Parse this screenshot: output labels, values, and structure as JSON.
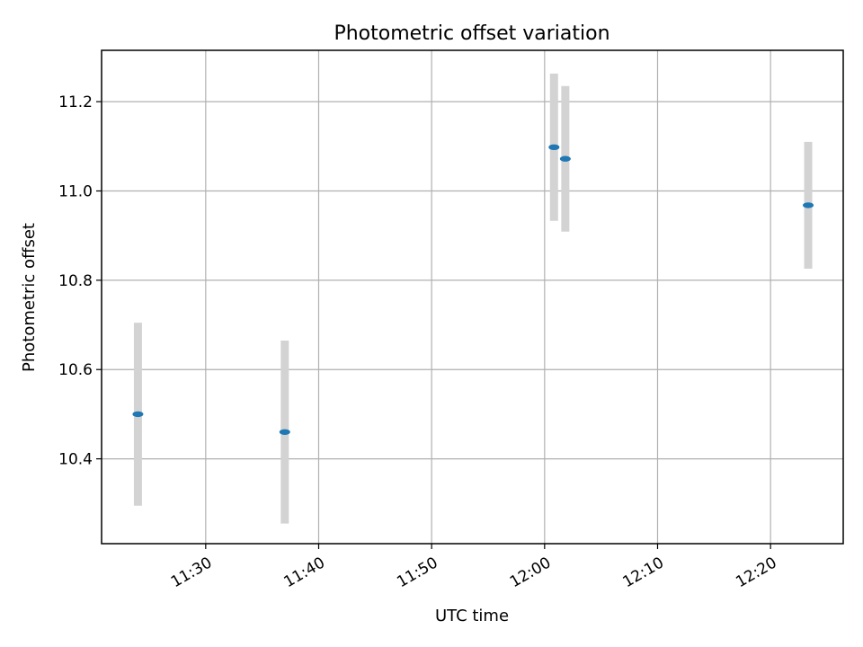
{
  "chart_data": {
    "type": "scatter",
    "title": "Photometric offset variation",
    "xlabel": "UTC time",
    "ylabel": "Photometric offset",
    "x_ticks": [
      "11:30",
      "11:40",
      "11:50",
      "12:00",
      "12:10",
      "12:20"
    ],
    "y_ticks": [
      "10.4",
      "10.6",
      "10.8",
      "11.0",
      "11.2"
    ],
    "xlim": [
      "11:20:47",
      "12:26:26"
    ],
    "ylim": [
      10.21,
      11.315
    ],
    "grid": true,
    "colors": {
      "point": "#1f77b4",
      "errorbar": "#d3d3d3"
    },
    "points": [
      {
        "x": "11:24:00",
        "y": 10.5,
        "err": 0.205
      },
      {
        "x": "11:37:00",
        "y": 10.46,
        "err": 0.205
      },
      {
        "x": "12:00:50",
        "y": 11.098,
        "err": 0.165
      },
      {
        "x": "12:01:50",
        "y": 11.072,
        "err": 0.163
      },
      {
        "x": "12:23:20",
        "y": 10.968,
        "err": 0.142
      }
    ]
  }
}
